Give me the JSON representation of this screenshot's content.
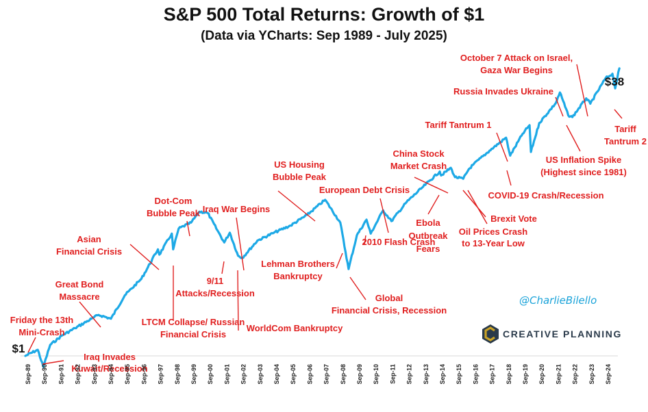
{
  "chart_data": {
    "type": "line",
    "title": "S&P 500 Total Returns: Growth of $1",
    "subtitle": "(Data via YCharts: Sep 1989 - July 2025)",
    "xlabel": "",
    "ylabel": "",
    "y_scale": "log",
    "grid": false,
    "legend": "none",
    "line_color": "#1da9e6",
    "annotation_color": "#e01e1e",
    "x_ticks": [
      "Sep-89",
      "Sep-90",
      "Sep-91",
      "Sep-92",
      "Sep-93",
      "Sep-94",
      "Sep-95",
      "Sep-96",
      "Sep-97",
      "Sep-98",
      "Sep-99",
      "Sep-00",
      "Sep-01",
      "Sep-02",
      "Sep-03",
      "Sep-04",
      "Sep-05",
      "Sep-06",
      "Sep-07",
      "Sep-08",
      "Sep-09",
      "Sep-10",
      "Sep-11",
      "Sep-12",
      "Sep-13",
      "Sep-14",
      "Sep-15",
      "Sep-16",
      "Sep-17",
      "Sep-18",
      "Sep-19",
      "Sep-20",
      "Sep-21",
      "Sep-22",
      "Sep-23",
      "Sep-24"
    ],
    "series": [
      {
        "values": [
          {
            "x": "1989-09",
            "y": 1.0
          },
          {
            "x": "1990-06",
            "y": 1.08
          },
          {
            "x": "1990-10",
            "y": 0.87
          },
          {
            "x": "1991-03",
            "y": 1.15
          },
          {
            "x": "1991-12",
            "y": 1.3
          },
          {
            "x": "1992-09",
            "y": 1.42
          },
          {
            "x": "1993-09",
            "y": 1.6
          },
          {
            "x": "1994-02",
            "y": 1.68
          },
          {
            "x": "1994-11",
            "y": 1.6
          },
          {
            "x": "1995-09",
            "y": 2.15
          },
          {
            "x": "1996-09",
            "y": 2.65
          },
          {
            "x": "1997-09",
            "y": 3.85
          },
          {
            "x": "1997-10",
            "y": 3.6
          },
          {
            "x": "1998-07",
            "y": 4.7
          },
          {
            "x": "1998-08",
            "y": 3.85
          },
          {
            "x": "1998-12",
            "y": 5.0
          },
          {
            "x": "1999-09",
            "y": 5.4
          },
          {
            "x": "2000-03",
            "y": 6.2
          },
          {
            "x": "2000-09",
            "y": 6.1
          },
          {
            "x": "2001-04",
            "y": 4.9
          },
          {
            "x": "2001-09",
            "y": 4.2
          },
          {
            "x": "2002-01",
            "y": 4.75
          },
          {
            "x": "2002-07",
            "y": 3.55
          },
          {
            "x": "2002-10",
            "y": 3.45
          },
          {
            "x": "2003-09",
            "y": 4.3
          },
          {
            "x": "2004-09",
            "y": 4.75
          },
          {
            "x": "2005-09",
            "y": 5.2
          },
          {
            "x": "2006-09",
            "y": 5.95
          },
          {
            "x": "2007-10",
            "y": 7.2
          },
          {
            "x": "2008-09",
            "y": 5.4
          },
          {
            "x": "2009-03",
            "y": 3.0
          },
          {
            "x": "2009-09",
            "y": 4.6
          },
          {
            "x": "2010-04",
            "y": 5.6
          },
          {
            "x": "2010-07",
            "y": 4.7
          },
          {
            "x": "2011-04",
            "y": 6.3
          },
          {
            "x": "2011-10",
            "y": 5.5
          },
          {
            "x": "2012-09",
            "y": 7.0
          },
          {
            "x": "2013-09",
            "y": 8.5
          },
          {
            "x": "2014-09",
            "y": 10.3
          },
          {
            "x": "2014-10",
            "y": 9.8
          },
          {
            "x": "2015-05",
            "y": 10.8
          },
          {
            "x": "2015-08",
            "y": 9.6
          },
          {
            "x": "2016-02",
            "y": 9.4
          },
          {
            "x": "2016-06",
            "y": 10.6
          },
          {
            "x": "2016-09",
            "y": 11.2
          },
          {
            "x": "2017-09",
            "y": 13.4
          },
          {
            "x": "2018-09",
            "y": 15.8
          },
          {
            "x": "2018-12",
            "y": 12.6
          },
          {
            "x": "2019-09",
            "y": 16.6
          },
          {
            "x": "2020-02",
            "y": 18.5
          },
          {
            "x": "2020-03",
            "y": 13.2
          },
          {
            "x": "2020-09",
            "y": 19.0
          },
          {
            "x": "2021-09",
            "y": 24.5
          },
          {
            "x": "2021-12",
            "y": 28.0
          },
          {
            "x": "2022-06",
            "y": 21.0
          },
          {
            "x": "2022-09",
            "y": 20.5
          },
          {
            "x": "2023-07",
            "y": 26.0
          },
          {
            "x": "2023-10",
            "y": 24.3
          },
          {
            "x": "2024-09",
            "y": 33.5
          },
          {
            "x": "2025-02",
            "y": 35.5
          },
          {
            "x": "2025-04",
            "y": 29.5
          },
          {
            "x": "2025-07",
            "y": 38.0
          }
        ]
      }
    ],
    "end_labels": {
      "start": "$1",
      "end": "$38"
    },
    "annotations": [
      {
        "text": [
          "Friday the 13th",
          "Mini-Crash"
        ]
      },
      {
        "text": [
          "Iraq Invades",
          "Kuwait/Recession"
        ]
      },
      {
        "text": [
          "Great Bond",
          "Massacre"
        ]
      },
      {
        "text": [
          "Asian",
          "Financial Crisis"
        ]
      },
      {
        "text": [
          "LTCM Collapse/ Russian",
          "Financial Crisis"
        ]
      },
      {
        "text": [
          "Dot-Com",
          "Bubble Peak"
        ]
      },
      {
        "text": [
          "9/11",
          "Attacks/Recession"
        ]
      },
      {
        "text": [
          "Iraq War Begins"
        ]
      },
      {
        "text": [
          "WorldCom Bankruptcy"
        ]
      },
      {
        "text": [
          "US Housing",
          "Bubble Peak"
        ]
      },
      {
        "text": [
          "Lehman Brothers",
          "Bankruptcy"
        ]
      },
      {
        "text": [
          "Global",
          "Financial Crisis, Recession"
        ]
      },
      {
        "text": [
          "European Debt Crisis"
        ]
      },
      {
        "text": [
          "2010 Flash Crash"
        ]
      },
      {
        "text": [
          "China Stock",
          "Market Crash"
        ]
      },
      {
        "text": [
          "Ebola",
          "Outbreak",
          "Fears"
        ]
      },
      {
        "text": [
          "Oil Prices Crash",
          "to 13-Year Low"
        ]
      },
      {
        "text": [
          "Brexit Vote"
        ]
      },
      {
        "text": [
          "Tariff Tantrum 1"
        ]
      },
      {
        "text": [
          "COVID-19 Crash/Recession"
        ]
      },
      {
        "text": [
          "US Inflation Spike",
          "(Highest since 1981)"
        ]
      },
      {
        "text": [
          "Russia Invades Ukraine"
        ]
      },
      {
        "text": [
          "October 7 Attack on Israel,",
          "Gaza War Begins"
        ]
      },
      {
        "text": [
          "Tariff",
          "Tantrum 2"
        ]
      }
    ]
  },
  "branding": {
    "handle": "@CharlieBilello",
    "logo_text": "CREATIVE PLANNING",
    "logo_colors": [
      "#c9a227",
      "#2a3a4a"
    ]
  }
}
